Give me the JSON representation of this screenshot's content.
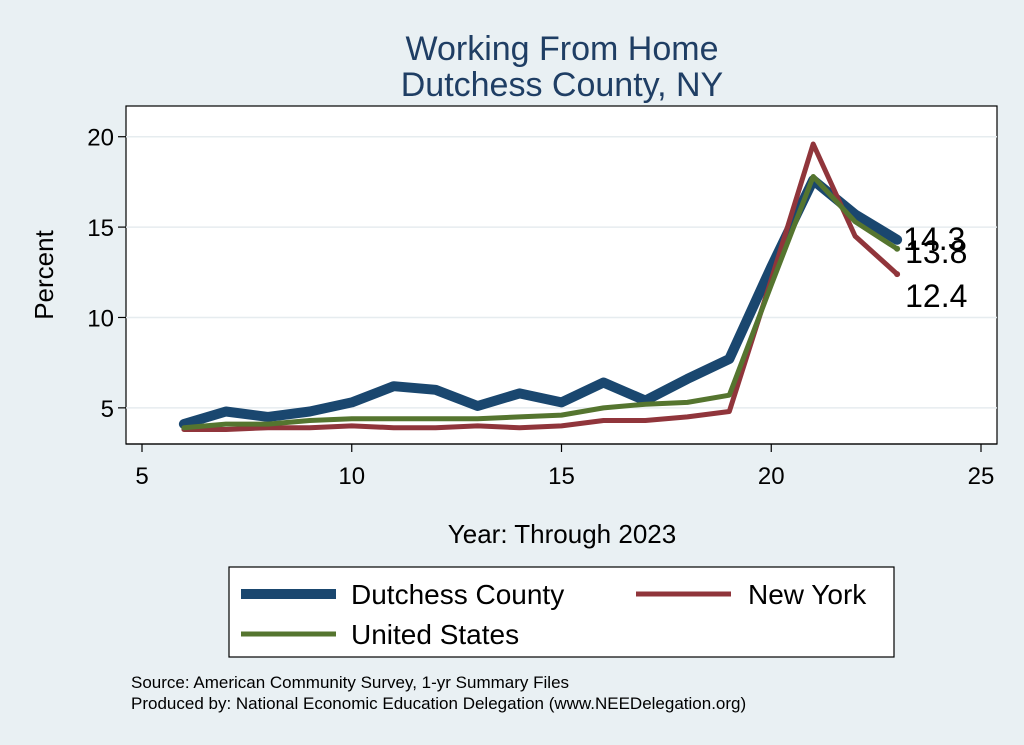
{
  "chart_data": {
    "type": "line",
    "title": "Working From Home",
    "subtitle": "Dutchess County, NY",
    "xlabel": "Year: Through 2023",
    "ylabel": "Percent",
    "xlim": [
      5,
      25
    ],
    "ylim": [
      3,
      21.7
    ],
    "xticks": [
      5,
      10,
      15,
      20,
      25
    ],
    "yticks": [
      5,
      10,
      15,
      20
    ],
    "grid": true,
    "legend_position": "bottom",
    "series": [
      {
        "name": "Dutchess County",
        "color": "#1a476f",
        "x": [
          6,
          7,
          8,
          9,
          10,
          11,
          12,
          13,
          14,
          15,
          16,
          17,
          18,
          19,
          20,
          21,
          22,
          23
        ],
        "values": [
          4.1,
          4.8,
          4.5,
          4.8,
          5.3,
          6.2,
          6.0,
          5.1,
          5.8,
          5.3,
          6.4,
          5.4,
          6.6,
          7.7,
          12.8,
          17.6,
          15.7,
          14.3
        ],
        "end_label": "14.3"
      },
      {
        "name": "New York",
        "color": "#90353b",
        "x": [
          6,
          7,
          8,
          9,
          10,
          11,
          12,
          13,
          14,
          15,
          16,
          17,
          18,
          19,
          20,
          21,
          22,
          23
        ],
        "values": [
          3.8,
          3.8,
          3.9,
          3.9,
          4.0,
          3.9,
          3.9,
          4.0,
          3.9,
          4.0,
          4.3,
          4.3,
          4.5,
          4.8,
          12.1,
          19.6,
          14.5,
          12.4
        ],
        "end_label": "12.4"
      },
      {
        "name": "United States",
        "color": "#55752f",
        "x": [
          6,
          7,
          8,
          9,
          10,
          11,
          12,
          13,
          14,
          15,
          16,
          17,
          18,
          19,
          20,
          21,
          22,
          23
        ],
        "values": [
          3.9,
          4.1,
          4.1,
          4.3,
          4.4,
          4.4,
          4.4,
          4.4,
          4.5,
          4.6,
          5.0,
          5.2,
          5.3,
          5.7,
          11.8,
          17.8,
          15.3,
          13.8
        ],
        "end_label": "13.8"
      }
    ],
    "notes": [
      "Source: American Community Survey, 1-yr Summary Files",
      "Produced by: National Economic Education Delegation (www.NEEDelegation.org)"
    ]
  }
}
